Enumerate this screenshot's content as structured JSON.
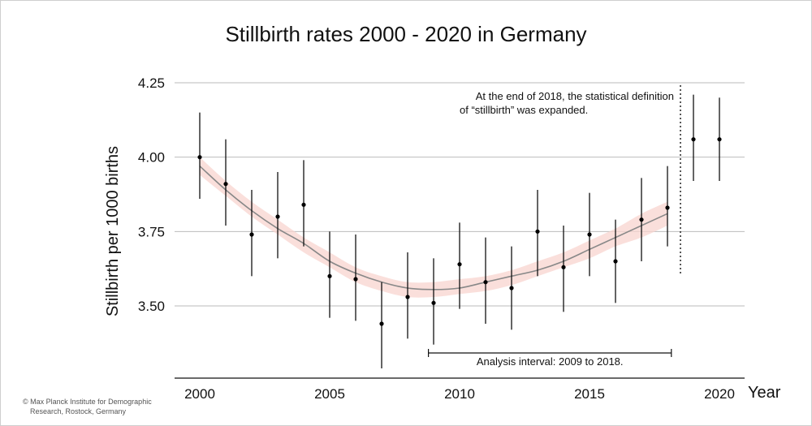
{
  "chart_data": {
    "type": "scatter",
    "title": "Stillbirth rates 2000 - 2020 in Germany",
    "xlabel": "Year",
    "ylabel": "Stillbirth per 1000 births",
    "xlim": [
      1999,
      2021
    ],
    "ylim": [
      3.3,
      4.25
    ],
    "xticks": [
      2000,
      2005,
      2010,
      2015,
      2020
    ],
    "xtick_labels": [
      "2000",
      "2005",
      "2010",
      "2015",
      "2020"
    ],
    "yticks": [
      3.5,
      3.75,
      4.0,
      4.25
    ],
    "ytick_labels": [
      "3.50",
      "3.75",
      "4.00",
      "4.25"
    ],
    "grid": "horizontal",
    "colors": {
      "point": "#000000",
      "errorbar": "#111111",
      "trend": "#888888",
      "ribbon": "#f8d4cf",
      "grid": "#bbbbbb"
    },
    "points": [
      {
        "x": 2000,
        "y": 4.0,
        "low": 3.86,
        "high": 4.15
      },
      {
        "x": 2001,
        "y": 3.91,
        "low": 3.77,
        "high": 4.06
      },
      {
        "x": 2002,
        "y": 3.74,
        "low": 3.6,
        "high": 3.89
      },
      {
        "x": 2003,
        "y": 3.8,
        "low": 3.66,
        "high": 3.95
      },
      {
        "x": 2004,
        "y": 3.84,
        "low": 3.7,
        "high": 3.99
      },
      {
        "x": 2005,
        "y": 3.6,
        "low": 3.46,
        "high": 3.75
      },
      {
        "x": 2006,
        "y": 3.59,
        "low": 3.45,
        "high": 3.74
      },
      {
        "x": 2007,
        "y": 3.44,
        "low": 3.29,
        "high": 3.58
      },
      {
        "x": 2008,
        "y": 3.53,
        "low": 3.39,
        "high": 3.68
      },
      {
        "x": 2009,
        "y": 3.51,
        "low": 3.37,
        "high": 3.66
      },
      {
        "x": 2010,
        "y": 3.64,
        "low": 3.49,
        "high": 3.78
      },
      {
        "x": 2011,
        "y": 3.58,
        "low": 3.44,
        "high": 3.73
      },
      {
        "x": 2012,
        "y": 3.56,
        "low": 3.42,
        "high": 3.7
      },
      {
        "x": 2013,
        "y": 3.75,
        "low": 3.6,
        "high": 3.89
      },
      {
        "x": 2014,
        "y": 3.63,
        "low": 3.48,
        "high": 3.77
      },
      {
        "x": 2015,
        "y": 3.74,
        "low": 3.6,
        "high": 3.88
      },
      {
        "x": 2016,
        "y": 3.65,
        "low": 3.51,
        "high": 3.79
      },
      {
        "x": 2017,
        "y": 3.79,
        "low": 3.65,
        "high": 3.93
      },
      {
        "x": 2018,
        "y": 3.83,
        "low": 3.7,
        "high": 3.97
      },
      {
        "x": 2019,
        "y": 4.06,
        "low": 3.92,
        "high": 4.21
      },
      {
        "x": 2020,
        "y": 4.06,
        "low": 3.92,
        "high": 4.2
      }
    ],
    "trend": [
      {
        "x": 2000,
        "y": 3.97,
        "low": 3.94,
        "high": 4.0
      },
      {
        "x": 2001,
        "y": 3.89,
        "low": 3.87,
        "high": 3.92
      },
      {
        "x": 2002,
        "y": 3.82,
        "low": 3.8,
        "high": 3.85
      },
      {
        "x": 2003,
        "y": 3.76,
        "low": 3.74,
        "high": 3.79
      },
      {
        "x": 2004,
        "y": 3.71,
        "low": 3.68,
        "high": 3.73
      },
      {
        "x": 2005,
        "y": 3.65,
        "low": 3.63,
        "high": 3.68
      },
      {
        "x": 2006,
        "y": 3.61,
        "low": 3.58,
        "high": 3.63
      },
      {
        "x": 2007,
        "y": 3.58,
        "low": 3.55,
        "high": 3.6
      },
      {
        "x": 2008,
        "y": 3.56,
        "low": 3.53,
        "high": 3.58
      },
      {
        "x": 2009,
        "y": 3.555,
        "low": 3.53,
        "high": 3.58
      },
      {
        "x": 2010,
        "y": 3.56,
        "low": 3.54,
        "high": 3.59
      },
      {
        "x": 2011,
        "y": 3.58,
        "low": 3.55,
        "high": 3.6
      },
      {
        "x": 2012,
        "y": 3.6,
        "low": 3.57,
        "high": 3.62
      },
      {
        "x": 2013,
        "y": 3.62,
        "low": 3.6,
        "high": 3.65
      },
      {
        "x": 2014,
        "y": 3.65,
        "low": 3.63,
        "high": 3.68
      },
      {
        "x": 2015,
        "y": 3.69,
        "low": 3.66,
        "high": 3.72
      },
      {
        "x": 2016,
        "y": 3.73,
        "low": 3.7,
        "high": 3.76
      },
      {
        "x": 2017,
        "y": 3.77,
        "low": 3.73,
        "high": 3.81
      },
      {
        "x": 2018,
        "y": 3.81,
        "low": 3.77,
        "high": 3.85
      }
    ],
    "annotations": {
      "definition_change_year": 2018.5,
      "definition_note_line1": "At the end of 2018, the statistical definition",
      "definition_note_line2": "of “stillbirth” was expanded.",
      "interval_start": 2008.8,
      "interval_end": 2018.15,
      "interval_label": "Analysis interval: 2009 to 2018."
    }
  },
  "footer": {
    "copyright_line1": "© Max Planck Institute for Demographic",
    "copyright_line2": "Research, Rostock, Germany"
  }
}
